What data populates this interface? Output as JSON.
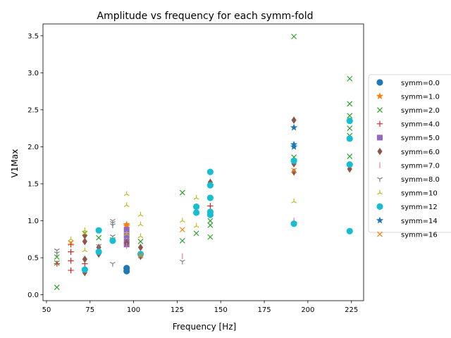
{
  "chart_data": {
    "type": "scatter",
    "title": "Amplitude vs frequency for each symm-fold",
    "xlabel": "Frequency [Hz]",
    "ylabel": "V1Max",
    "xlim": [
      48,
      232
    ],
    "ylim": [
      -0.08,
      3.66
    ],
    "xticks": [
      "50",
      "75",
      "100",
      "125",
      "150",
      "175",
      "200",
      "225"
    ],
    "xtick_values": [
      50,
      75,
      100,
      125,
      150,
      175,
      200,
      225
    ],
    "yticks": [
      "0.0",
      "0.5",
      "1.0",
      "1.5",
      "2.0",
      "2.5",
      "3.0",
      "3.5"
    ],
    "ytick_values": [
      0.0,
      0.5,
      1.0,
      1.5,
      2.0,
      2.5,
      3.0,
      3.5
    ],
    "grid": false,
    "legend_position": "outside-right",
    "series": [
      {
        "name": "symm=0.0",
        "marker": "o",
        "color": "#1f77b4",
        "points": [
          [
            96,
            0.36
          ],
          [
            96,
            0.32
          ]
        ]
      },
      {
        "name": "symm=1.0",
        "marker": "*",
        "color": "#ff7f0e",
        "points": [
          [
            96,
            0.95
          ],
          [
            96,
            0.93
          ],
          [
            192,
            1.82
          ]
        ]
      },
      {
        "name": "symm=2.0",
        "marker": "x",
        "color": "#2ca02c",
        "points": [
          [
            56,
            0.1
          ],
          [
            56,
            0.43
          ],
          [
            56,
            0.51
          ],
          [
            64,
            0.7
          ],
          [
            72,
            0.83
          ],
          [
            80,
            0.77
          ],
          [
            88,
            0.74
          ],
          [
            96,
            0.78
          ],
          [
            104,
            0.72
          ],
          [
            128,
            1.38
          ],
          [
            128,
            0.73
          ],
          [
            136,
            0.83
          ],
          [
            144,
            0.78
          ],
          [
            144,
            0.94
          ],
          [
            144,
            1.0
          ],
          [
            192,
            3.49
          ],
          [
            192,
            1.86
          ],
          [
            224,
            2.92
          ],
          [
            224,
            2.58
          ],
          [
            224,
            2.42
          ],
          [
            224,
            2.25
          ],
          [
            224,
            2.15
          ],
          [
            224,
            1.87
          ]
        ]
      },
      {
        "name": "symm=4.0",
        "marker": "+",
        "color": "#d62728",
        "points": [
          [
            56,
            0.42
          ],
          [
            64,
            0.33
          ],
          [
            64,
            0.46
          ],
          [
            64,
            0.58
          ],
          [
            64,
            0.68
          ],
          [
            72,
            0.42
          ],
          [
            144,
            1.2
          ],
          [
            192,
            0.98
          ]
        ]
      },
      {
        "name": "symm=5.0",
        "marker": "s",
        "color": "#9467bd",
        "points": [
          [
            96,
            0.88
          ],
          [
            96,
            0.8
          ],
          [
            96,
            0.72
          ],
          [
            96,
            0.68
          ]
        ]
      },
      {
        "name": "symm=6.0",
        "marker": "d",
        "color": "#8c564b",
        "points": [
          [
            72,
            0.3
          ],
          [
            72,
            0.48
          ],
          [
            72,
            0.72
          ],
          [
            72,
            0.8
          ],
          [
            80,
            0.55
          ],
          [
            80,
            0.64
          ],
          [
            96,
            0.7
          ],
          [
            104,
            0.52
          ],
          [
            104,
            0.64
          ],
          [
            144,
            1.52
          ],
          [
            192,
            2.36
          ],
          [
            192,
            1.77
          ],
          [
            192,
            1.66
          ],
          [
            224,
            1.7
          ]
        ]
      },
      {
        "name": "symm=7.0",
        "marker": "|",
        "color": "#e377c2",
        "points": [
          [
            96,
            0.66
          ],
          [
            128,
            0.52
          ],
          [
            192,
            1.0
          ]
        ]
      },
      {
        "name": "symm=8.0",
        "marker": "1",
        "color": "#7f7f7f",
        "points": [
          [
            56,
            0.6
          ],
          [
            56,
            0.56
          ],
          [
            80,
            0.66
          ],
          [
            88,
            1.0
          ],
          [
            88,
            0.97
          ],
          [
            88,
            0.94
          ],
          [
            88,
            0.79
          ],
          [
            88,
            0.42
          ],
          [
            128,
            0.45
          ]
        ]
      },
      {
        "name": "symm=10",
        "marker": "2",
        "color": "#bcbd22",
        "points": [
          [
            64,
            0.75
          ],
          [
            72,
            0.87
          ],
          [
            72,
            0.83
          ],
          [
            72,
            0.6
          ],
          [
            96,
            1.36
          ],
          [
            96,
            1.21
          ],
          [
            96,
            0.82
          ],
          [
            104,
            1.08
          ],
          [
            104,
            0.95
          ],
          [
            104,
            0.79
          ],
          [
            128,
            1.0
          ],
          [
            136,
            1.31
          ],
          [
            136,
            0.93
          ],
          [
            192,
            1.26
          ]
        ]
      },
      {
        "name": "symm=12",
        "marker": "o",
        "color": "#17becf",
        "points": [
          [
            72,
            0.34
          ],
          [
            80,
            0.87
          ],
          [
            80,
            0.58
          ],
          [
            88,
            0.73
          ],
          [
            104,
            0.55
          ],
          [
            136,
            1.19
          ],
          [
            136,
            1.11
          ],
          [
            144,
            1.66
          ],
          [
            144,
            1.48
          ],
          [
            144,
            1.31
          ],
          [
            144,
            1.12
          ],
          [
            144,
            1.08
          ],
          [
            192,
            1.81
          ],
          [
            192,
            0.96
          ],
          [
            224,
            2.35
          ],
          [
            224,
            2.11
          ],
          [
            224,
            1.76
          ],
          [
            224,
            0.86
          ]
        ]
      },
      {
        "name": "symm=14",
        "marker": "*",
        "color": "#1f77b4",
        "points": [
          [
            192,
            2.26
          ],
          [
            192,
            2.03
          ],
          [
            192,
            2.0
          ]
        ]
      },
      {
        "name": "symm=16",
        "marker": "x",
        "color": "#ff7f0e",
        "points": [
          [
            64,
            0.7
          ],
          [
            104,
            0.53
          ],
          [
            128,
            0.88
          ],
          [
            192,
            1.68
          ]
        ]
      }
    ]
  }
}
